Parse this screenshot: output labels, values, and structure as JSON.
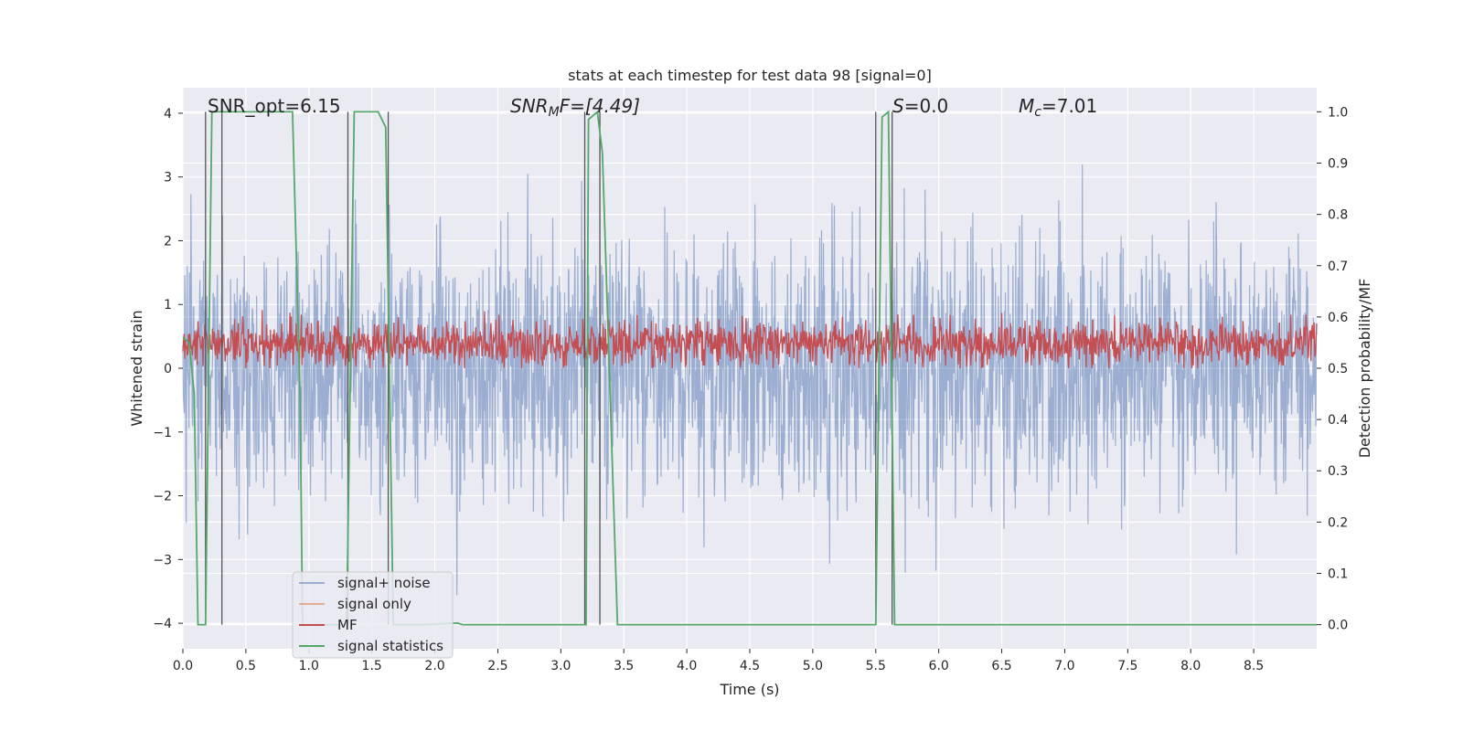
{
  "chart_data": {
    "type": "line",
    "title": "stats at each timestep for test data 98 [signal=0]",
    "xlabel": "Time (s)",
    "ylabel": "Whitened strain",
    "y2label": "Detection probability/MF",
    "xlim": [
      0,
      9
    ],
    "ylim": [
      -4.4,
      4.4
    ],
    "y2lim": [
      -0.047,
      1.047
    ],
    "xticks": [
      "0.0",
      "0.5",
      "1.0",
      "1.5",
      "2.0",
      "2.5",
      "3.0",
      "3.5",
      "4.0",
      "4.5",
      "5.0",
      "5.5",
      "6.0",
      "6.5",
      "7.0",
      "7.5",
      "8.0",
      "8.5"
    ],
    "yticks": [
      "−4",
      "−3",
      "−2",
      "−1",
      "0",
      "1",
      "2",
      "3",
      "4"
    ],
    "y2ticks": [
      "0.0",
      "0.1",
      "0.2",
      "0.3",
      "0.4",
      "0.5",
      "0.6",
      "0.7",
      "0.8",
      "0.9",
      "1.0"
    ],
    "annotations": {
      "snr_opt": "SNR_opt=6.15",
      "snr_mf_sym": "SNR",
      "snr_mf_sub": "M",
      "snr_mf_rest": "F=[4.49]",
      "s_sym": "S",
      "s_rest": "=0.0",
      "mc_sym": "M",
      "mc_sub": "c",
      "mc_rest": "=7.01"
    },
    "vertical_markers": [
      0.18,
      0.31,
      1.31,
      1.63,
      3.19,
      3.31,
      5.5,
      5.63
    ],
    "series": [
      {
        "name": "signal+ noise",
        "color": "#4c72b0",
        "axis": "left",
        "description": "whitened noise, mostly within ±2.5, peaks near ±4"
      },
      {
        "name": "signal only",
        "color": "#dd8452",
        "axis": "left",
        "values": []
      },
      {
        "name": "MF",
        "color": "#c44e52",
        "axis": "right",
        "description": "matched-filter output, ~0.50–0.62, mean ~0.55"
      },
      {
        "name": "signal statistics",
        "color": "#55a868",
        "axis": "right",
        "points": [
          [
            0.0,
            0.56
          ],
          [
            0.05,
            0.55
          ],
          [
            0.09,
            0.45
          ],
          [
            0.12,
            0.0
          ],
          [
            0.18,
            0.0
          ],
          [
            0.23,
            1.0
          ],
          [
            0.87,
            1.0
          ],
          [
            0.93,
            0.45
          ],
          [
            0.95,
            0.0
          ],
          [
            1.3,
            0.0
          ],
          [
            1.36,
            1.0
          ],
          [
            1.55,
            1.0
          ],
          [
            1.61,
            0.97
          ],
          [
            1.67,
            0.0
          ],
          [
            1.9,
            0.0
          ],
          [
            2.18,
            0.003
          ],
          [
            2.22,
            0.0
          ],
          [
            3.2,
            0.0
          ],
          [
            3.22,
            0.985
          ],
          [
            3.29,
            1.0
          ],
          [
            3.33,
            0.92
          ],
          [
            3.45,
            0.0
          ],
          [
            5.5,
            0.0
          ],
          [
            5.55,
            0.99
          ],
          [
            5.6,
            1.0
          ],
          [
            5.65,
            0.0
          ],
          [
            9.0,
            0.0
          ]
        ]
      }
    ],
    "legend": {
      "position": "lower-left",
      "entries": [
        "signal+ noise",
        "signal only",
        "MF",
        "signal statistics"
      ]
    }
  }
}
